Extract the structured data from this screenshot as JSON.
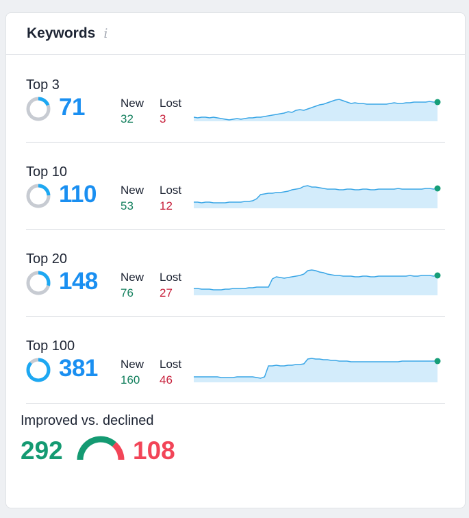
{
  "widget": {
    "title": "Keywords",
    "info_icon": "info-icon"
  },
  "colors": {
    "accent_blue": "#1a8ff1",
    "new_green": "#14805e",
    "lost_red": "#c8223d",
    "improved_green": "#149a72",
    "declined_red": "#f24558",
    "spark_line": "#3aa6e6",
    "spark_fill": "#d3ecfb",
    "spark_dot": "#169e78"
  },
  "rows": [
    {
      "label": "Top 3",
      "count": "71",
      "share": 0.19,
      "new_label": "New",
      "new": "32",
      "lost_label": "Lost",
      "lost": "3",
      "trend": [
        6,
        5,
        6,
        6,
        5,
        6,
        5,
        4,
        3,
        2,
        3,
        4,
        3,
        4,
        5,
        5,
        6,
        6,
        7,
        8,
        9,
        10,
        11,
        12,
        14,
        13,
        16,
        17,
        16,
        18,
        20,
        22,
        24,
        25,
        27,
        29,
        31,
        32,
        30,
        28,
        26,
        27,
        26,
        26,
        25,
        25,
        25,
        25,
        25,
        25,
        26,
        27,
        26,
        26,
        27,
        27,
        28,
        28,
        28,
        28,
        29,
        28,
        28
      ]
    },
    {
      "label": "Top 10",
      "count": "110",
      "share": 0.24,
      "new_label": "New",
      "new": "53",
      "lost_label": "Lost",
      "lost": "12",
      "trend": [
        9,
        9,
        8,
        9,
        9,
        8,
        8,
        8,
        8,
        9,
        9,
        9,
        9,
        10,
        10,
        11,
        14,
        20,
        21,
        22,
        22,
        23,
        23,
        24,
        25,
        27,
        28,
        29,
        32,
        33,
        31,
        31,
        30,
        29,
        28,
        28,
        28,
        27,
        27,
        28,
        28,
        27,
        27,
        28,
        28,
        27,
        27,
        28,
        28,
        28,
        28,
        28,
        29,
        28,
        28,
        28,
        28,
        28,
        28,
        29,
        29,
        28,
        29
      ]
    },
    {
      "label": "Top 20",
      "count": "148",
      "share": 0.29,
      "new_label": "New",
      "new": "76",
      "lost_label": "Lost",
      "lost": "27",
      "trend": [
        10,
        10,
        9,
        9,
        9,
        8,
        8,
        8,
        9,
        9,
        10,
        10,
        10,
        10,
        11,
        11,
        12,
        12,
        12,
        12,
        24,
        27,
        26,
        25,
        26,
        27,
        28,
        29,
        31,
        36,
        37,
        36,
        34,
        33,
        31,
        30,
        29,
        29,
        28,
        28,
        28,
        27,
        27,
        28,
        28,
        27,
        27,
        28,
        28,
        28,
        28,
        28,
        28,
        28,
        28,
        29,
        28,
        28,
        29,
        29,
        29,
        28,
        29
      ]
    },
    {
      "label": "Top 100",
      "count": "381",
      "share": 0.87,
      "new_label": "New",
      "new": "160",
      "lost_label": "Lost",
      "lost": "46",
      "trend": [
        8,
        8,
        8,
        8,
        8,
        8,
        8,
        7,
        7,
        7,
        7,
        8,
        8,
        8,
        8,
        8,
        7,
        6,
        8,
        24,
        24,
        25,
        24,
        24,
        25,
        25,
        26,
        26,
        27,
        34,
        35,
        34,
        34,
        33,
        33,
        32,
        32,
        31,
        31,
        31,
        30,
        30,
        30,
        30,
        30,
        30,
        30,
        30,
        30,
        30,
        30,
        30,
        30,
        31,
        31,
        31,
        31,
        31,
        31,
        31,
        31,
        31,
        31
      ]
    }
  ],
  "improved": {
    "label": "Improved vs. declined",
    "improved_value": "292",
    "declined_value": "108",
    "improved_share": 0.73
  }
}
